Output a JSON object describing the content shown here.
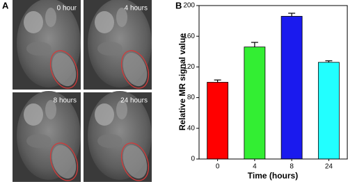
{
  "panel_a": {
    "label": "A",
    "image_labels": [
      "0 hour",
      "4 hours",
      "8 hours",
      "24 hours"
    ]
  },
  "chart_data": {
    "type": "bar",
    "panel_label": "B",
    "x_label": "Time (hours)",
    "y_label": "Relative MR signal value",
    "categories": [
      "0",
      "4",
      "8",
      "24"
    ],
    "values": [
      100,
      146,
      186,
      126
    ],
    "errors": [
      3,
      6,
      4,
      2
    ],
    "colors": [
      "#ff0000",
      "#33ee33",
      "#1a1aee",
      "#22ffff"
    ],
    "ylim": [
      0,
      200
    ],
    "yticks": [
      0,
      40,
      80,
      120,
      160,
      200
    ],
    "grid": false
  }
}
